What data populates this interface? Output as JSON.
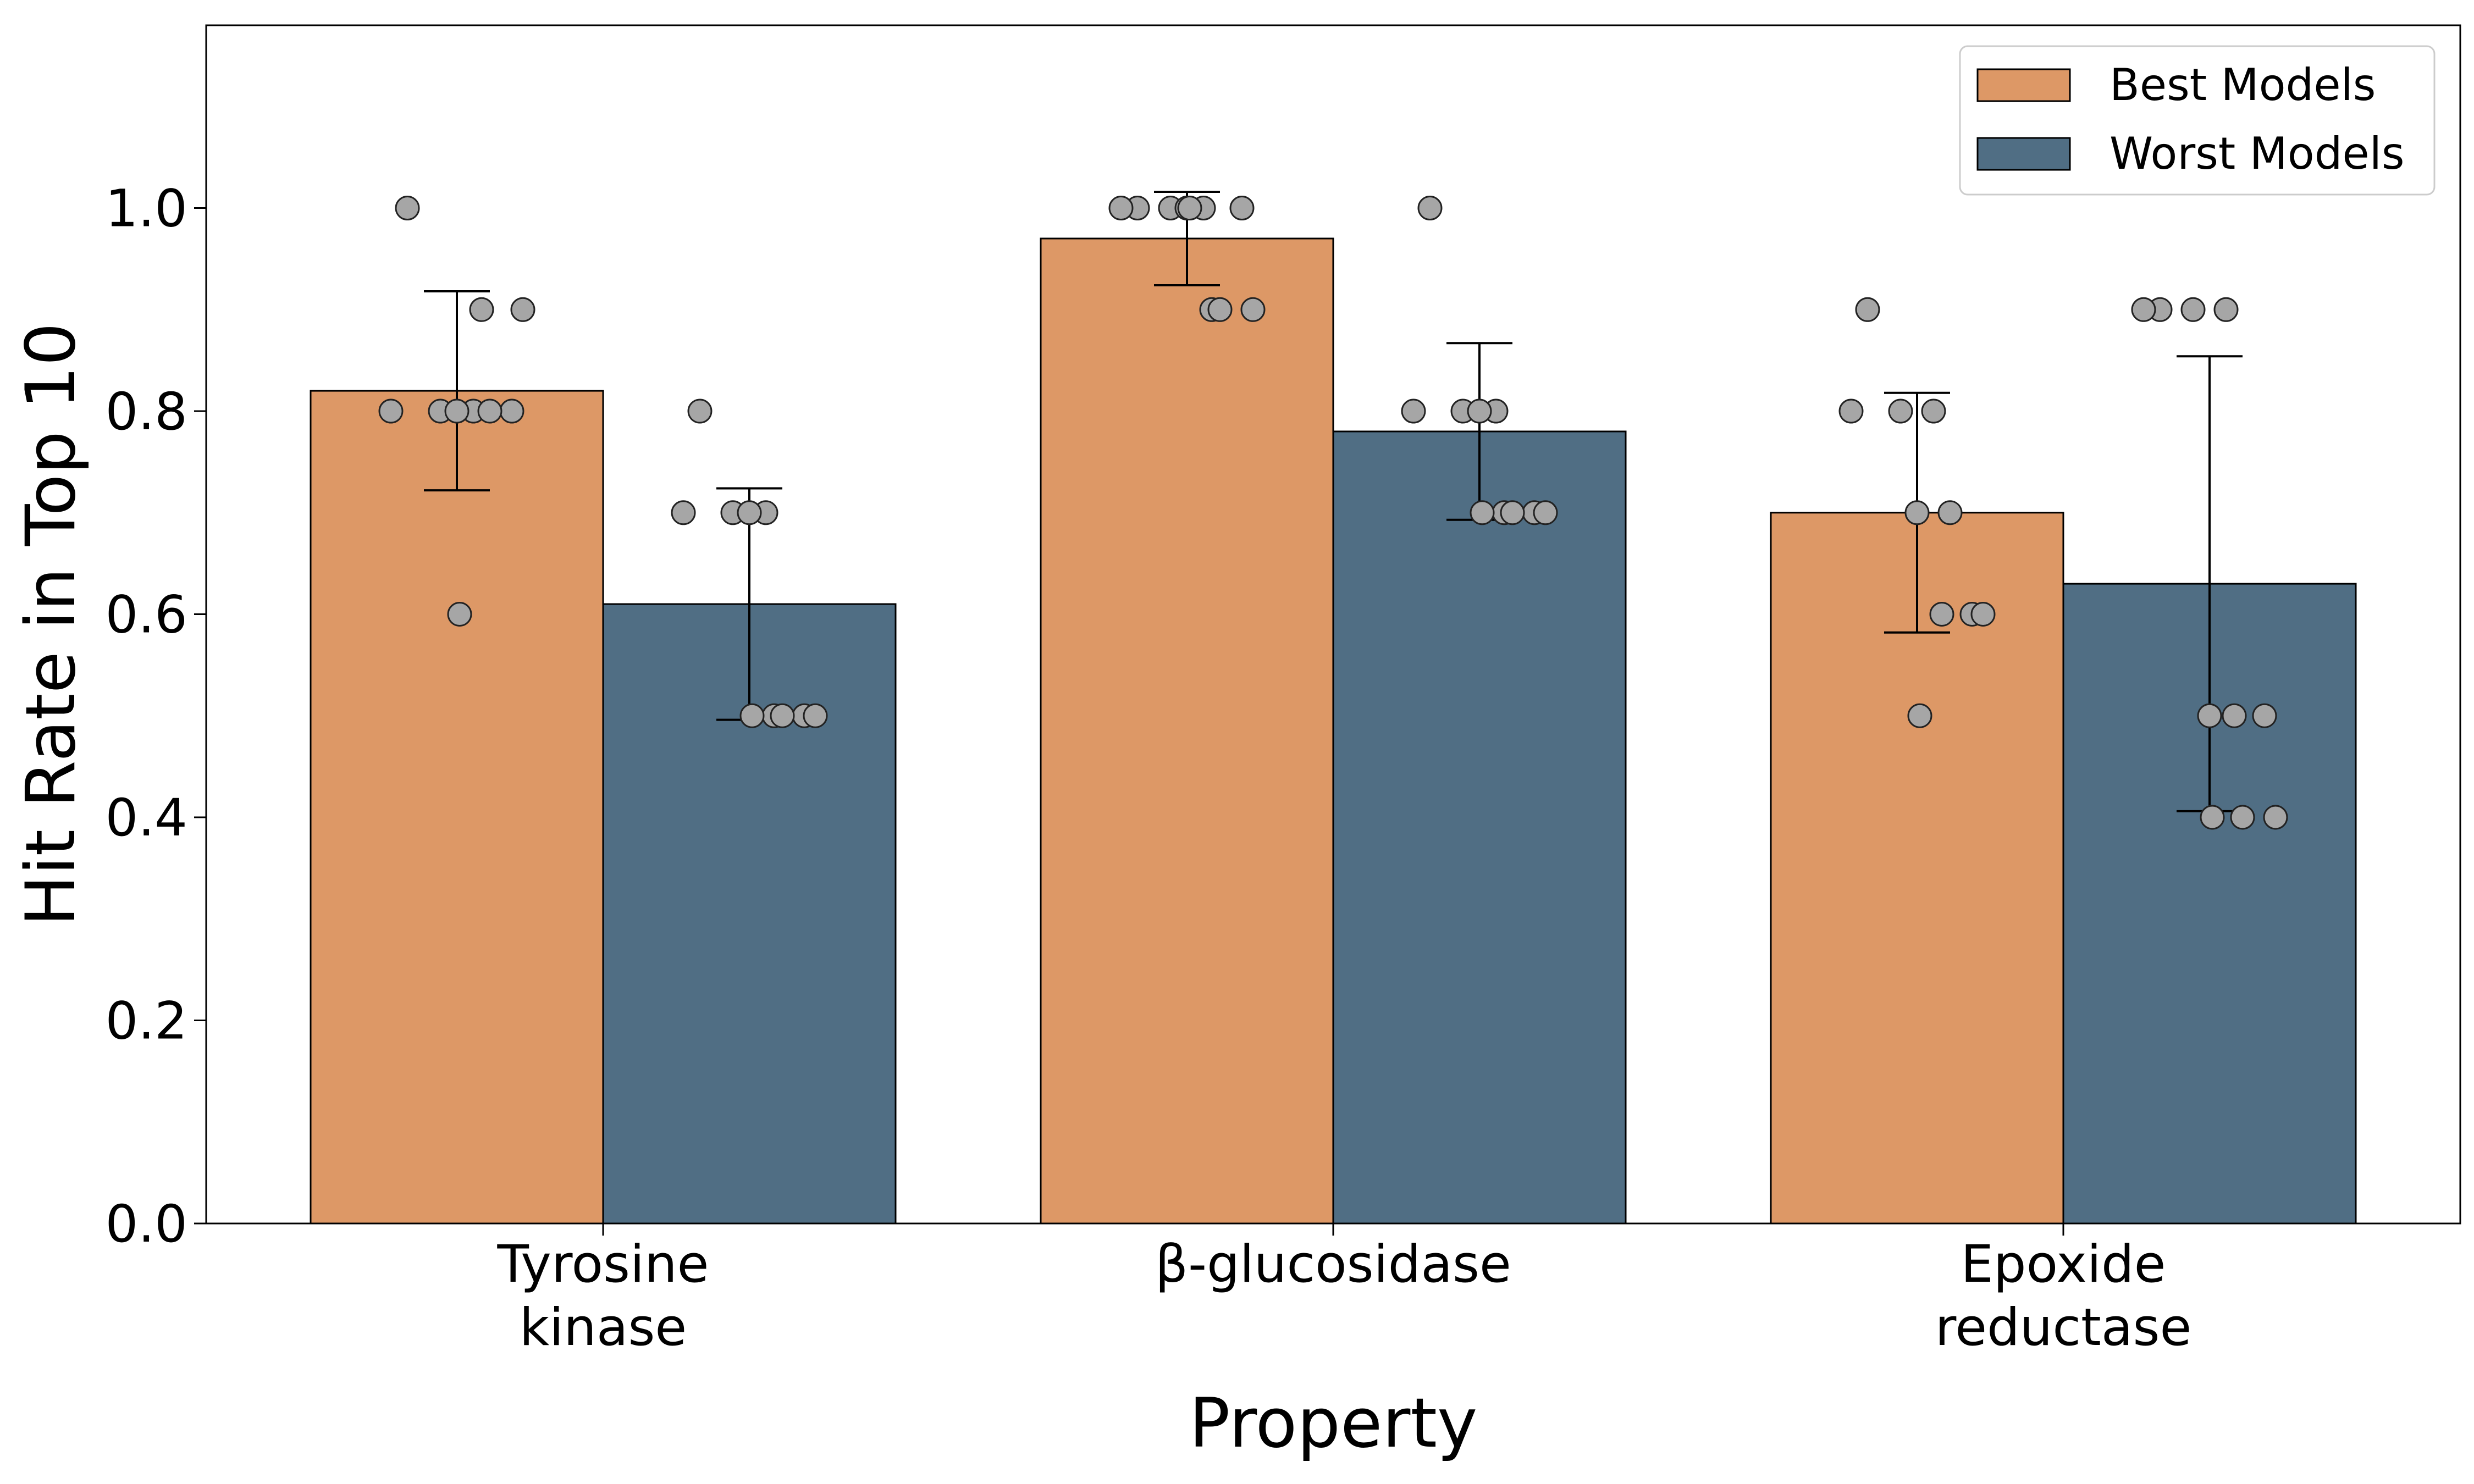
{
  "chart_data": {
    "type": "bar",
    "xlabel": "Property",
    "ylabel": "Hit Rate in Top 10",
    "ylim": [
      0,
      1.18
    ],
    "yticks": [
      "0.0",
      "0.2",
      "0.4",
      "0.6",
      "0.8",
      "1.0"
    ],
    "categories": [
      [
        "Tyrosine",
        "kinase"
      ],
      [
        "β-glucosidase"
      ],
      [
        "Epoxide",
        "reductase"
      ]
    ],
    "legend": {
      "placement": "top-right"
    },
    "grid": false,
    "series": [
      {
        "name": "Best Models",
        "color": "#dd9866",
        "values": [
          0.82,
          0.97,
          0.7
        ],
        "error": [
          0.098,
          0.046,
          0.118
        ],
        "points": [
          [
            1.0,
            0.8,
            0.8,
            0.8,
            0.8,
            0.8,
            0.9,
            0.9,
            0.8,
            0.6
          ],
          [
            1.0,
            1.0,
            1.0,
            1.0,
            1.0,
            1.0,
            0.9,
            0.9,
            0.9,
            1.0
          ],
          [
            0.9,
            0.8,
            0.8,
            0.8,
            0.7,
            0.6,
            0.6,
            0.6,
            0.7,
            0.5
          ]
        ]
      },
      {
        "name": "Worst Models",
        "color": "#506e84",
        "values": [
          0.61,
          0.78,
          0.63
        ],
        "error": [
          0.114,
          0.087,
          0.224
        ],
        "points": [
          [
            0.8,
            0.7,
            0.7,
            0.7,
            0.7,
            0.5,
            0.5,
            0.5,
            0.5,
            0.5
          ],
          [
            1.0,
            0.8,
            0.8,
            0.8,
            0.8,
            0.7,
            0.7,
            0.7,
            0.7,
            0.7
          ],
          [
            0.9,
            0.9,
            0.9,
            0.9,
            0.5,
            0.5,
            0.5,
            0.4,
            0.4,
            0.4
          ]
        ]
      }
    ]
  }
}
